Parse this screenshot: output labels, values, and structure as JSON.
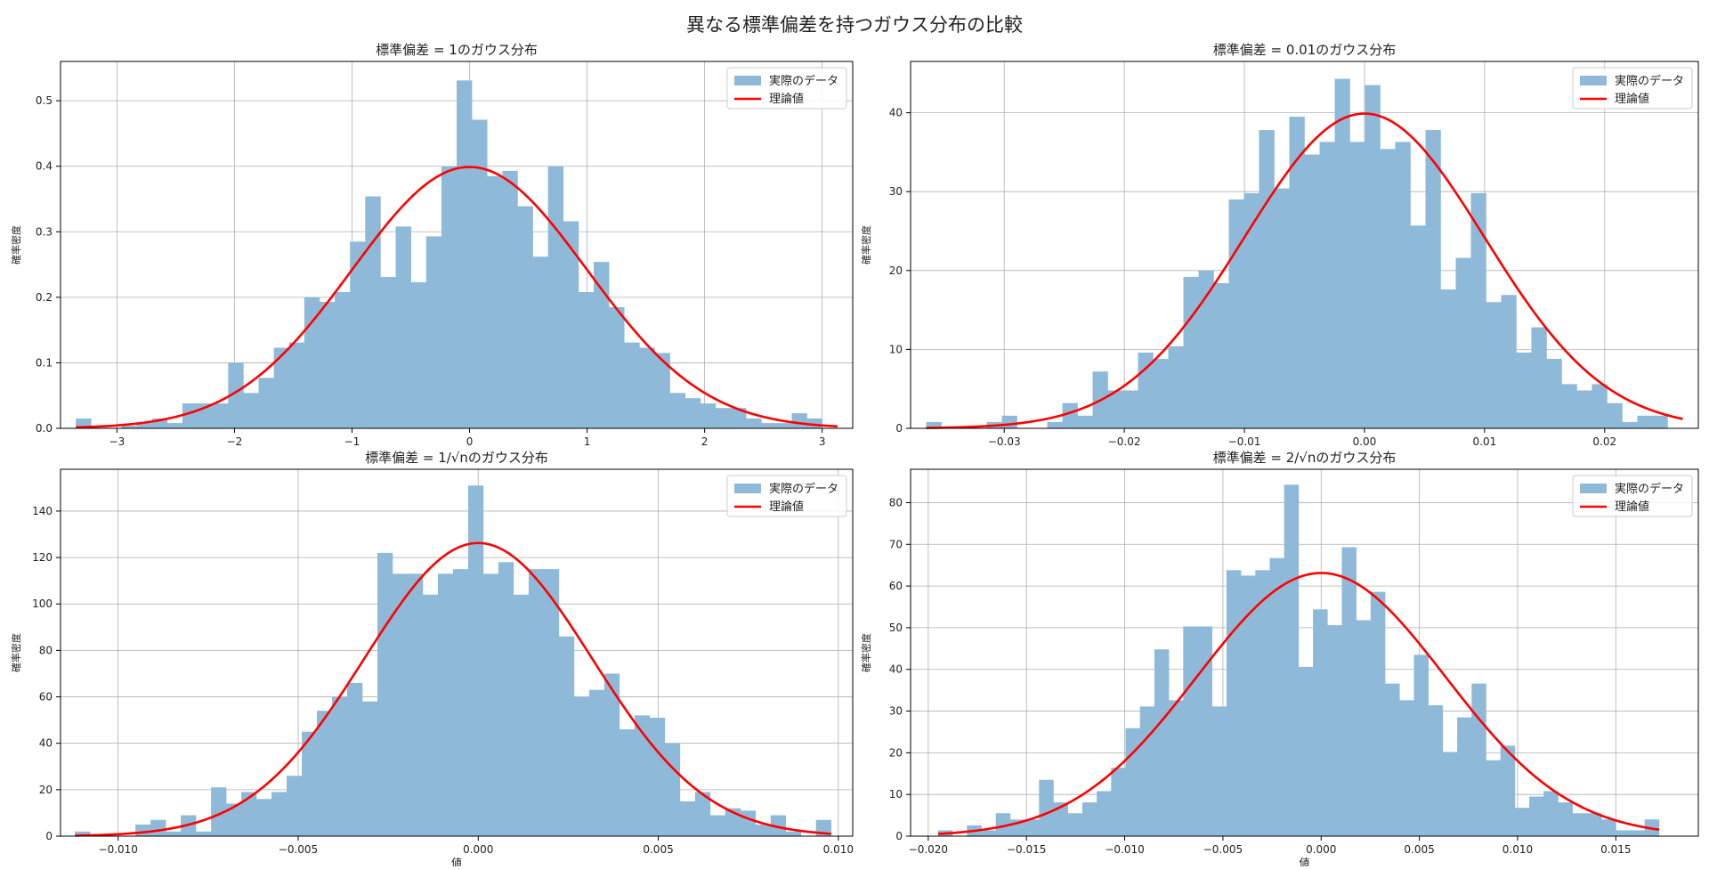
{
  "figure": {
    "suptitle": "異なる標準偏差を持つガウス分布の比較",
    "colors": {
      "hist": "#8fb9d8",
      "theory": "#ff0000",
      "grid": "#b0b0b0",
      "axes": "#000000"
    }
  },
  "chart_data": [
    {
      "type": "bar",
      "title": "標準偏差 = 1のガウス分布",
      "xlabel": "",
      "ylabel": "確率密度",
      "xlim": [
        -3.48,
        3.26
      ],
      "ylim": [
        0,
        0.56
      ],
      "xticks": [
        -3,
        -2,
        -1,
        0,
        1,
        2,
        3
      ],
      "xtick_labels": [
        "−3",
        "−2",
        "−1",
        "0",
        "1",
        "2",
        "3"
      ],
      "yticks": [
        0.0,
        0.1,
        0.2,
        0.3,
        0.4,
        0.5
      ],
      "ytick_labels": [
        "0.0",
        "0.1",
        "0.2",
        "0.3",
        "0.4",
        "0.5"
      ],
      "bin_start": -3.35,
      "bin_end": 3.13,
      "values": [
        0.015,
        0.0,
        0.0,
        0.004,
        0.008,
        0.015,
        0.008,
        0.038,
        0.038,
        0.038,
        0.1,
        0.054,
        0.077,
        0.123,
        0.131,
        0.2,
        0.193,
        0.208,
        0.285,
        0.354,
        0.231,
        0.308,
        0.223,
        0.293,
        0.4,
        0.531,
        0.471,
        0.385,
        0.393,
        0.339,
        0.262,
        0.4,
        0.316,
        0.208,
        0.254,
        0.185,
        0.131,
        0.123,
        0.115,
        0.054,
        0.046,
        0.038,
        0.031,
        0.031,
        0.015,
        0.008,
        0.008,
        0.023,
        0.015,
        0.0
      ],
      "theory_sigma": 1,
      "legend": [
        "実際のデータ",
        "理論値"
      ],
      "legend_loc": "upper right"
    },
    {
      "type": "bar",
      "title": "標準偏差 = 0.01のガウス分布",
      "xlabel": "",
      "ylabel": "確率密度",
      "xlim": [
        -0.0378,
        0.0278
      ],
      "ylim": [
        0,
        46.5
      ],
      "xticks": [
        -0.03,
        -0.02,
        -0.01,
        0,
        0.01,
        0.02
      ],
      "xtick_labels": [
        "−0.03",
        "−0.02",
        "−0.01",
        "0.00",
        "0.01",
        "0.02"
      ],
      "yticks": [
        0,
        10,
        20,
        30,
        40
      ],
      "ytick_labels": [
        "0",
        "10",
        "20",
        "30",
        "40"
      ],
      "bin_start": -0.0365,
      "bin_end": 0.0265,
      "values": [
        0.8,
        0.0,
        0.0,
        0.0,
        0.8,
        1.6,
        0.0,
        0.0,
        0.8,
        3.2,
        1.6,
        7.2,
        4.8,
        4.8,
        9.6,
        8.8,
        10.4,
        19.2,
        20.0,
        18.4,
        29.0,
        29.8,
        37.8,
        30.4,
        39.5,
        34.7,
        36.3,
        44.3,
        36.3,
        43.5,
        35.4,
        36.3,
        25.7,
        37.8,
        17.6,
        21.6,
        29.8,
        16.0,
        16.9,
        9.6,
        12.8,
        8.8,
        5.6,
        4.8,
        5.6,
        3.2,
        0.8,
        1.6,
        1.6,
        0.0
      ],
      "theory_sigma": 0.01,
      "legend": [
        "実際のデータ",
        "理論値"
      ],
      "legend_loc": "upper right"
    },
    {
      "type": "bar",
      "title": "標準偏差 = 1/√nのガウス分布",
      "xlabel": "値",
      "ylabel": "確率密度",
      "xlim": [
        -0.0116,
        0.0104
      ],
      "ylim": [
        0,
        158
      ],
      "xticks": [
        -0.01,
        -0.005,
        0,
        0.005,
        0.01
      ],
      "xtick_labels": [
        "−0.010",
        "−0.005",
        "0.000",
        "0.005",
        "0.010"
      ],
      "yticks": [
        0,
        20,
        40,
        60,
        80,
        100,
        120,
        140
      ],
      "ytick_labels": [
        "0",
        "20",
        "40",
        "60",
        "80",
        "100",
        "120",
        "140"
      ],
      "bin_start": -0.0112,
      "bin_end": 0.0098,
      "values": [
        2,
        0,
        0,
        0,
        5,
        7,
        2,
        9,
        2,
        21,
        14,
        19,
        16,
        19,
        26,
        45,
        54,
        60,
        66,
        58,
        122,
        113,
        113,
        104,
        113,
        115,
        151,
        113,
        118,
        104,
        115,
        115,
        86,
        60,
        63,
        70,
        46,
        52,
        51,
        40,
        15,
        19,
        9,
        12,
        11,
        5,
        9,
        2,
        0,
        7
      ],
      "theory_sigma": 0.00316,
      "legend": [
        "実際のデータ",
        "理論値"
      ],
      "legend_loc": "upper right"
    },
    {
      "type": "bar",
      "title": "標準偏差 = 2/√nのガウス分布",
      "xlabel": "値",
      "ylabel": "確率密度",
      "xlim": [
        -0.0209,
        0.0192
      ],
      "ylim": [
        0,
        88
      ],
      "xticks": [
        -0.02,
        -0.015,
        -0.01,
        -0.005,
        0,
        0.005,
        0.01,
        0.015
      ],
      "xtick_labels": [
        "−0.020",
        "−0.015",
        "−0.010",
        "−0.005",
        "0.000",
        "0.005",
        "0.010",
        "0.015"
      ],
      "yticks": [
        0,
        10,
        20,
        30,
        40,
        50,
        60,
        70,
        80
      ],
      "ytick_labels": [
        "0",
        "10",
        "20",
        "30",
        "40",
        "50",
        "60",
        "70",
        "80"
      ],
      "bin_start": -0.0195,
      "bin_end": 0.0172,
      "values": [
        1.4,
        0,
        2.6,
        1.4,
        5.5,
        4,
        4,
        13.5,
        8.1,
        5.5,
        8.1,
        10.8,
        16.4,
        25.9,
        31.1,
        44.8,
        32.6,
        50.3,
        50.3,
        31.1,
        63.8,
        62.5,
        63.8,
        66.7,
        84.3,
        40.6,
        54.4,
        50.6,
        69.3,
        51.8,
        58.6,
        36.6,
        32.6,
        43.5,
        31.4,
        20.2,
        28.5,
        36.6,
        18.2,
        21.7,
        6.8,
        9.5,
        10.8,
        8.1,
        5.5,
        5.5,
        4,
        1.4,
        1.4,
        4
      ],
      "theory_sigma": 0.00632,
      "legend": [
        "実際のデータ",
        "理論値"
      ],
      "legend_loc": "upper right"
    }
  ]
}
